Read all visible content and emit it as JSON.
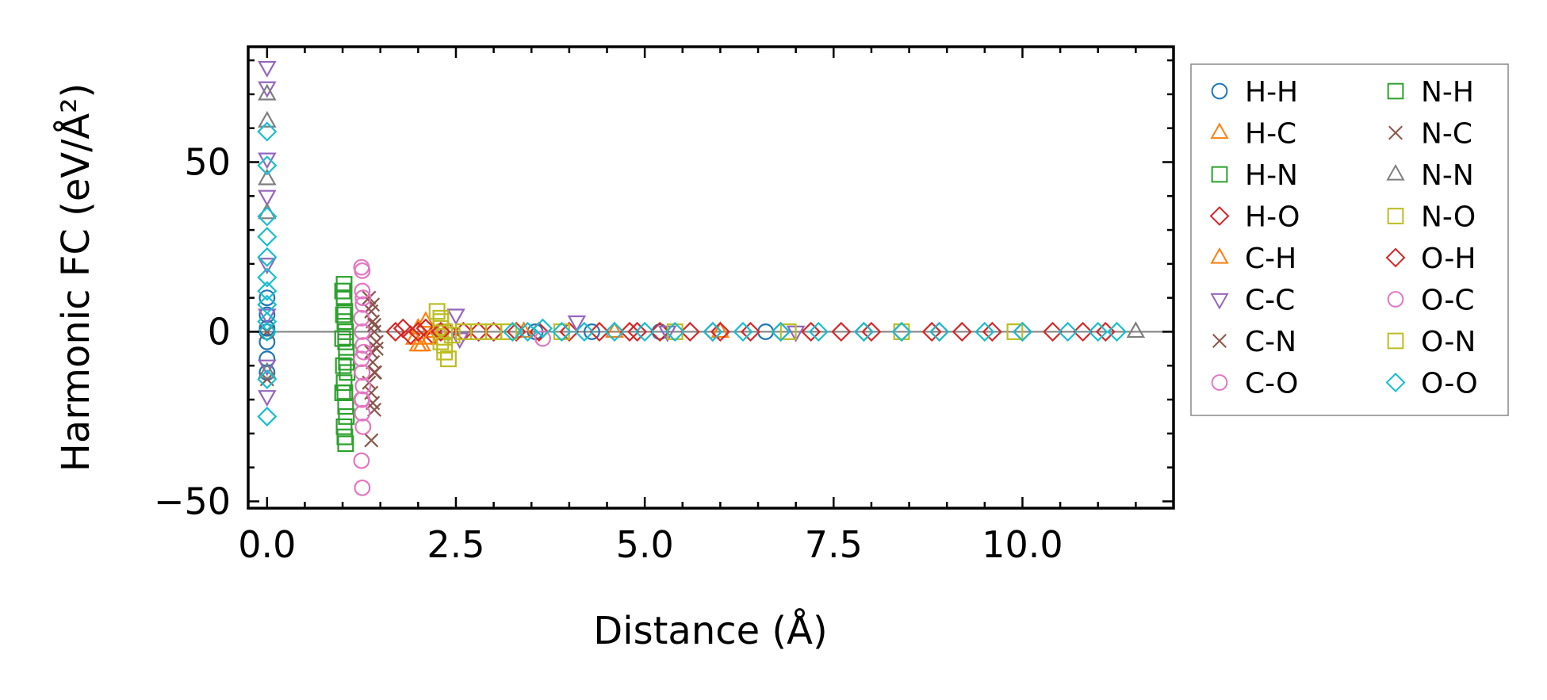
{
  "chart_data": {
    "type": "scatter",
    "title": "",
    "xlabel": "Distance (Å)",
    "ylabel": "Harmonic FC (eV/Å²)",
    "xlim": [
      -0.25,
      12.0
    ],
    "ylim": [
      -52,
      84
    ],
    "xticks": [
      0.0,
      2.5,
      5.0,
      7.5,
      10.0
    ],
    "xtick_labels": [
      "0.0",
      "2.5",
      "5.0",
      "7.5",
      "10.0"
    ],
    "yticks": [
      -50,
      0,
      50
    ],
    "ytick_labels": [
      "−50",
      "0",
      "50"
    ],
    "zero_line": true,
    "legend_position": "outside-right",
    "legend_columns": 2,
    "series": [
      {
        "name": "H-H",
        "marker": "circle",
        "color": "#1f77b4",
        "x": [
          0,
          0,
          0,
          0,
          0,
          0,
          0,
          3.55,
          4.3,
          5.2,
          6.6
        ],
        "y": [
          1,
          -3,
          5,
          -8,
          10,
          0,
          -12,
          0,
          0,
          0,
          0
        ]
      },
      {
        "name": "H-C",
        "marker": "triangle-up",
        "color": "#ff7f0e",
        "x": [
          1.95,
          2.0,
          2.05,
          2.1,
          2.2,
          3.4,
          4.6,
          6.0
        ],
        "y": [
          -2,
          1,
          -4,
          3,
          0,
          0,
          0,
          0
        ]
      },
      {
        "name": "H-N",
        "marker": "square",
        "color": "#2ca02c",
        "x": [
          1.02,
          1.02,
          1.03,
          1.03,
          1.04,
          1.04,
          1.05,
          1.05,
          1.06,
          1.02,
          1.03,
          1.04,
          1.05,
          1.02,
          1.03,
          1.04
        ],
        "y": [
          14,
          10,
          6,
          3,
          0,
          -3,
          -6,
          -9,
          -12,
          -15,
          -18,
          -22,
          -25,
          -28,
          -31,
          -33
        ]
      },
      {
        "name": "H-O",
        "marker": "diamond",
        "color": "#d62728",
        "x": [
          1.7,
          1.8,
          1.9,
          2.0,
          2.1,
          2.2,
          2.4,
          2.6,
          2.8,
          3.0,
          3.3,
          3.6,
          4.0,
          4.4,
          4.8,
          5.2,
          5.6,
          6.0,
          6.4,
          6.8,
          7.2,
          7.6,
          8.0,
          8.4,
          8.8,
          9.2,
          9.6,
          10.0,
          10.4,
          10.8,
          11.1
        ],
        "y": [
          0,
          1,
          -1,
          0,
          1,
          -1,
          0,
          0,
          0,
          0,
          0,
          0,
          0,
          0,
          0,
          0,
          0,
          0,
          0,
          0,
          0,
          0,
          0,
          0,
          0,
          0,
          0,
          0,
          0,
          0,
          0
        ]
      },
      {
        "name": "C-H",
        "marker": "triangle-up",
        "color": "#ff7f0e",
        "x": [
          2.0,
          2.15,
          2.3
        ],
        "y": [
          -4,
          -2,
          0
        ]
      },
      {
        "name": "C-C",
        "marker": "triangle-down",
        "color": "#9467bd",
        "x": [
          0,
          0,
          0,
          0,
          0,
          0,
          0,
          0,
          2.5,
          2.55,
          4.1,
          5.3,
          7.0
        ],
        "y": [
          78,
          72,
          51,
          40,
          20,
          5,
          -10,
          -19,
          5,
          -2,
          3,
          0,
          0
        ]
      },
      {
        "name": "C-N",
        "marker": "cross",
        "color": "#8c564b",
        "x": [
          0,
          0,
          1.35,
          1.38,
          1.4,
          1.42,
          1.45,
          1.38,
          1.4,
          1.42,
          1.35,
          1.38,
          1.4,
          1.42,
          1.38
        ],
        "y": [
          0,
          -14,
          10,
          6,
          3,
          0,
          -3,
          -6,
          -9,
          -12,
          -15,
          -18,
          -21,
          -23,
          -32
        ]
      },
      {
        "name": "C-O",
        "marker": "circle",
        "color": "#e377c2",
        "x": [
          1.25,
          1.26,
          1.27,
          1.25,
          1.26,
          1.27,
          1.25,
          1.26,
          1.27,
          1.25,
          1.26,
          1.27,
          1.25,
          1.26,
          3.65
        ],
        "y": [
          19,
          12,
          8,
          4,
          0,
          -4,
          -8,
          -12,
          -16,
          -20,
          -24,
          -28,
          -38,
          -46,
          -2
        ]
      },
      {
        "name": "N-H",
        "marker": "square",
        "color": "#2ca02c",
        "x": [
          1.0,
          1.01,
          1.0,
          1.01,
          1.0
        ],
        "y": [
          12,
          5,
          -2,
          -10,
          -18
        ]
      },
      {
        "name": "N-C",
        "marker": "cross",
        "color": "#8c564b",
        "x": [
          1.4,
          1.42,
          1.45,
          1.43
        ],
        "y": [
          8,
          2,
          -5,
          -12
        ]
      },
      {
        "name": "N-N",
        "marker": "triangle-up",
        "color": "#7f7f7f",
        "x": [
          0,
          0,
          0,
          0,
          0,
          11.5
        ],
        "y": [
          70,
          62,
          45,
          35,
          -12,
          0
        ]
      },
      {
        "name": "N-O",
        "marker": "square",
        "color": "#bcbd22",
        "x": [
          2.25,
          2.3,
          2.35,
          2.3,
          2.35,
          2.4,
          2.3,
          2.45,
          2.6,
          2.8,
          3.0,
          3.2
        ],
        "y": [
          6,
          3,
          0,
          -3,
          -6,
          -8,
          1,
          -1,
          0,
          0,
          0,
          0
        ]
      },
      {
        "name": "O-H",
        "marker": "diamond",
        "color": "#d62728",
        "x": [
          2.0,
          2.3,
          4.9,
          5.9,
          7.9,
          8.9
        ],
        "y": [
          0,
          0,
          0,
          0,
          0,
          0
        ]
      },
      {
        "name": "O-C",
        "marker": "circle",
        "color": "#e377c2",
        "x": [
          1.26,
          1.27,
          1.28,
          1.26
        ],
        "y": [
          18,
          10,
          -6,
          -20
        ]
      },
      {
        "name": "O-N",
        "marker": "square",
        "color": "#bcbd22",
        "x": [
          2.3,
          2.35,
          3.9,
          5.4,
          6.9,
          8.4,
          9.9
        ],
        "y": [
          4,
          -4,
          0,
          0,
          0,
          0,
          0
        ]
      },
      {
        "name": "O-O",
        "marker": "diamond",
        "color": "#17becf",
        "x": [
          0,
          0,
          0,
          0,
          0,
          0,
          0,
          0,
          0,
          0,
          0,
          0,
          3.25,
          3.45,
          3.65,
          3.9,
          4.2,
          4.6,
          5.0,
          5.4,
          5.9,
          6.3,
          6.8,
          7.3,
          7.9,
          8.4,
          8.9,
          9.5,
          10.0,
          10.6,
          11.0,
          11.25
        ],
        "y": [
          59,
          49,
          34,
          28,
          22,
          16,
          12,
          8,
          3,
          0,
          -14,
          -25,
          0,
          0,
          1,
          0,
          0,
          0,
          0,
          0,
          0,
          0,
          0,
          0,
          0,
          0,
          0,
          0,
          0,
          0,
          0,
          0
        ]
      }
    ]
  }
}
